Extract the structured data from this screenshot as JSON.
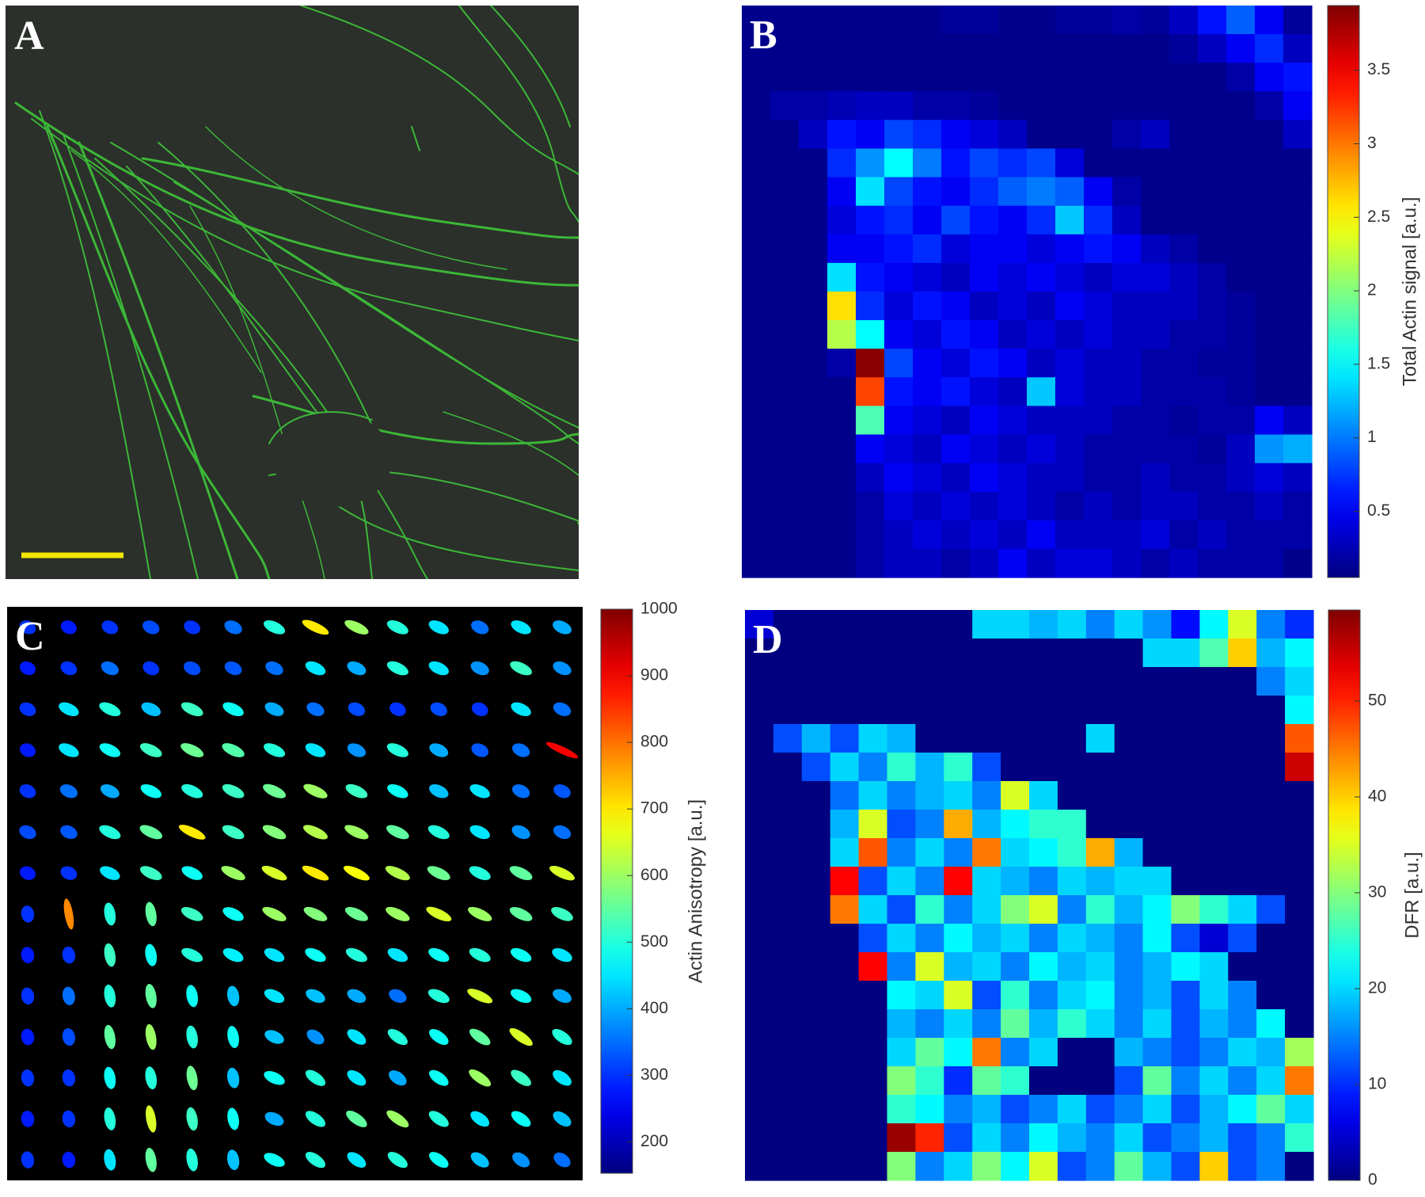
{
  "image_panel": {
    "label": "A"
  },
  "chart_data": [
    {
      "type": "heatmap",
      "label": "B",
      "colormap": "jet",
      "colorbar_label": "Total Actin signal [a.u.]",
      "ylim": [
        0.05,
        3.94
      ],
      "yticks": [
        0.5,
        1,
        1.5,
        2,
        2.5,
        3,
        3.5
      ],
      "values": [
        [
          0.1,
          0.1,
          0.1,
          0.1,
          0.1,
          0.1,
          0.1,
          0.15,
          0.15,
          0.1,
          0.1,
          0.15,
          0.15,
          0.2,
          0.15,
          0.3,
          0.6,
          0.9,
          0.5,
          0.15
        ],
        [
          0.1,
          0.1,
          0.1,
          0.1,
          0.1,
          0.1,
          0.1,
          0.1,
          0.1,
          0.1,
          0.1,
          0.1,
          0.1,
          0.1,
          0.1,
          0.15,
          0.3,
          0.5,
          0.7,
          0.3
        ],
        [
          0.1,
          0.1,
          0.1,
          0.1,
          0.1,
          0.1,
          0.1,
          0.1,
          0.1,
          0.1,
          0.1,
          0.1,
          0.1,
          0.1,
          0.1,
          0.1,
          0.1,
          0.2,
          0.5,
          0.6
        ],
        [
          0.1,
          0.2,
          0.2,
          0.25,
          0.3,
          0.3,
          0.2,
          0.2,
          0.15,
          0.1,
          0.1,
          0.1,
          0.1,
          0.1,
          0.1,
          0.1,
          0.1,
          0.1,
          0.2,
          0.5
        ],
        [
          0.1,
          0.1,
          0.3,
          0.6,
          0.5,
          0.8,
          0.7,
          0.5,
          0.4,
          0.3,
          0.1,
          0.1,
          0.1,
          0.2,
          0.3,
          0.1,
          0.1,
          0.1,
          0.1,
          0.3
        ],
        [
          0.1,
          0.1,
          0.1,
          0.7,
          1.1,
          1.5,
          1.0,
          0.6,
          0.8,
          0.7,
          0.8,
          0.4,
          0.1,
          0.1,
          0.1,
          0.1,
          0.1,
          0.1,
          0.1,
          0.1
        ],
        [
          0.1,
          0.1,
          0.1,
          0.5,
          1.4,
          0.8,
          0.6,
          0.5,
          0.7,
          0.9,
          1.0,
          0.9,
          0.5,
          0.2,
          0.1,
          0.1,
          0.1,
          0.1,
          0.1,
          0.1
        ],
        [
          0.1,
          0.1,
          0.1,
          0.4,
          0.6,
          0.7,
          0.5,
          0.8,
          0.6,
          0.5,
          0.7,
          1.3,
          0.7,
          0.3,
          0.1,
          0.1,
          0.1,
          0.1,
          0.1,
          0.1
        ],
        [
          0.1,
          0.1,
          0.1,
          0.5,
          0.5,
          0.6,
          0.7,
          0.4,
          0.5,
          0.5,
          0.4,
          0.5,
          0.6,
          0.5,
          0.3,
          0.2,
          0.1,
          0.1,
          0.1,
          0.1
        ],
        [
          0.1,
          0.1,
          0.1,
          1.4,
          0.6,
          0.5,
          0.4,
          0.3,
          0.5,
          0.4,
          0.5,
          0.4,
          0.3,
          0.4,
          0.4,
          0.3,
          0.2,
          0.1,
          0.1,
          0.1
        ],
        [
          0.1,
          0.1,
          0.1,
          2.6,
          0.7,
          0.4,
          0.6,
          0.5,
          0.3,
          0.4,
          0.3,
          0.5,
          0.4,
          0.3,
          0.3,
          0.3,
          0.2,
          0.15,
          0.1,
          0.1
        ],
        [
          0.1,
          0.1,
          0.1,
          2.2,
          1.5,
          0.5,
          0.4,
          0.6,
          0.5,
          0.3,
          0.4,
          0.3,
          0.4,
          0.3,
          0.3,
          0.2,
          0.2,
          0.15,
          0.1,
          0.1
        ],
        [
          0.1,
          0.1,
          0.1,
          0.2,
          3.9,
          0.8,
          0.5,
          0.4,
          0.6,
          0.5,
          0.3,
          0.4,
          0.3,
          0.3,
          0.2,
          0.2,
          0.15,
          0.15,
          0.1,
          0.1
        ],
        [
          0.1,
          0.1,
          0.1,
          0.1,
          3.2,
          0.6,
          0.5,
          0.6,
          0.4,
          0.3,
          1.3,
          0.4,
          0.3,
          0.3,
          0.2,
          0.2,
          0.2,
          0.15,
          0.1,
          0.1
        ],
        [
          0.1,
          0.1,
          0.1,
          0.1,
          1.8,
          0.5,
          0.4,
          0.3,
          0.5,
          0.4,
          0.3,
          0.3,
          0.3,
          0.2,
          0.2,
          0.15,
          0.2,
          0.2,
          0.5,
          0.3
        ],
        [
          0.1,
          0.1,
          0.1,
          0.1,
          0.5,
          0.4,
          0.3,
          0.5,
          0.4,
          0.3,
          0.4,
          0.3,
          0.2,
          0.2,
          0.2,
          0.2,
          0.15,
          0.3,
          1.1,
          1.2
        ],
        [
          0.1,
          0.1,
          0.1,
          0.1,
          0.3,
          0.5,
          0.4,
          0.3,
          0.5,
          0.4,
          0.3,
          0.3,
          0.2,
          0.2,
          0.3,
          0.2,
          0.2,
          0.3,
          0.4,
          0.3
        ],
        [
          0.1,
          0.1,
          0.1,
          0.1,
          0.2,
          0.4,
          0.3,
          0.4,
          0.3,
          0.4,
          0.3,
          0.2,
          0.3,
          0.2,
          0.3,
          0.3,
          0.2,
          0.2,
          0.3,
          0.2
        ],
        [
          0.1,
          0.1,
          0.1,
          0.1,
          0.2,
          0.3,
          0.4,
          0.3,
          0.4,
          0.3,
          0.5,
          0.3,
          0.3,
          0.3,
          0.4,
          0.2,
          0.3,
          0.2,
          0.2,
          0.2
        ],
        [
          0.1,
          0.1,
          0.1,
          0.1,
          0.2,
          0.3,
          0.3,
          0.2,
          0.3,
          0.5,
          0.3,
          0.4,
          0.4,
          0.3,
          0.2,
          0.3,
          0.2,
          0.2,
          0.2,
          0.1
        ]
      ]
    },
    {
      "type": "glyph_field",
      "label": "C",
      "colormap": "jet",
      "colorbar_label": "Actin Anisotropy [a.u.]",
      "ylim": [
        153,
        1000
      ],
      "yticks": [
        200,
        300,
        400,
        500,
        600,
        700,
        800,
        900,
        1000
      ],
      "values": [
        [
          300,
          280,
          300,
          320,
          300,
          350,
          500,
          700,
          600,
          500,
          450,
          350,
          450,
          400
        ],
        [
          280,
          300,
          350,
          300,
          320,
          330,
          350,
          450,
          400,
          500,
          450,
          380,
          520,
          380
        ],
        [
          300,
          450,
          500,
          420,
          520,
          480,
          400,
          350,
          320,
          300,
          320,
          300,
          450,
          350
        ],
        [
          280,
          450,
          480,
          520,
          560,
          540,
          500,
          450,
          380,
          500,
          400,
          330,
          350,
          900
        ],
        [
          300,
          350,
          400,
          480,
          500,
          520,
          560,
          600,
          520,
          480,
          420,
          450,
          350,
          330
        ],
        [
          320,
          330,
          500,
          550,
          700,
          520,
          580,
          620,
          600,
          550,
          500,
          450,
          380,
          350
        ],
        [
          280,
          300,
          450,
          520,
          480,
          600,
          650,
          700,
          680,
          620,
          560,
          500,
          550,
          650
        ],
        [
          300,
          780,
          500,
          550,
          520,
          480,
          600,
          580,
          560,
          600,
          650,
          600,
          550,
          520
        ],
        [
          280,
          300,
          520,
          480,
          500,
          460,
          450,
          480,
          500,
          450,
          480,
          500,
          480,
          450
        ],
        [
          300,
          350,
          500,
          550,
          480,
          420,
          450,
          420,
          400,
          350,
          500,
          650,
          480,
          400
        ],
        [
          280,
          320,
          550,
          600,
          500,
          480,
          420,
          380,
          450,
          500,
          480,
          550,
          650,
          500
        ],
        [
          300,
          300,
          480,
          500,
          560,
          420,
          480,
          500,
          450,
          400,
          480,
          600,
          520,
          450
        ],
        [
          280,
          300,
          500,
          650,
          520,
          480,
          400,
          500,
          550,
          600,
          500,
          450,
          480,
          420
        ],
        [
          300,
          280,
          450,
          550,
          500,
          420,
          480,
          500,
          450,
          500,
          480,
          420,
          380,
          350
        ]
      ]
    },
    {
      "type": "heatmap",
      "label": "D",
      "colormap": "jet",
      "colorbar_label": "DFR [a.u.]",
      "ylim": [
        0,
        59.5
      ],
      "yticks": [
        0,
        10,
        20,
        30,
        40,
        50
      ],
      "values": [
        [
          5,
          0,
          0,
          0,
          0,
          0,
          0,
          0,
          20,
          20,
          18,
          20,
          15,
          20,
          16,
          8,
          22,
          35,
          15,
          10
        ],
        [
          0,
          0,
          0,
          0,
          0,
          0,
          0,
          0,
          0,
          0,
          0,
          0,
          0,
          0,
          20,
          20,
          27,
          40,
          18,
          22
        ],
        [
          0,
          0,
          0,
          0,
          0,
          0,
          0,
          0,
          0,
          0,
          0,
          0,
          0,
          0,
          0,
          0,
          0,
          0,
          15,
          20
        ],
        [
          0,
          0,
          0,
          0,
          0,
          0,
          0,
          0,
          0,
          0,
          0,
          0,
          0,
          0,
          0,
          0,
          0,
          0,
          0,
          22
        ],
        [
          0,
          12,
          18,
          12,
          20,
          18,
          0,
          0,
          0,
          0,
          0,
          0,
          20,
          0,
          0,
          0,
          0,
          0,
          0,
          47
        ],
        [
          0,
          0,
          12,
          20,
          15,
          25,
          18,
          25,
          12,
          0,
          0,
          0,
          0,
          0,
          0,
          0,
          0,
          0,
          0,
          55
        ],
        [
          0,
          0,
          0,
          14,
          20,
          15,
          18,
          20,
          15,
          35,
          20,
          0,
          0,
          0,
          0,
          0,
          0,
          0,
          0,
          0
        ],
        [
          0,
          0,
          0,
          18,
          35,
          12,
          15,
          42,
          18,
          22,
          25,
          25,
          0,
          0,
          0,
          0,
          0,
          0,
          0,
          0
        ],
        [
          0,
          0,
          0,
          20,
          47,
          15,
          20,
          15,
          45,
          20,
          22,
          25,
          42,
          18,
          0,
          0,
          0,
          0,
          0,
          0
        ],
        [
          0,
          0,
          0,
          52,
          12,
          20,
          15,
          52,
          20,
          18,
          15,
          20,
          18,
          20,
          20,
          0,
          0,
          0,
          0,
          0
        ],
        [
          0,
          0,
          0,
          45,
          20,
          12,
          25,
          15,
          20,
          30,
          35,
          15,
          25,
          18,
          22,
          30,
          25,
          20,
          12,
          0
        ],
        [
          0,
          0,
          0,
          0,
          12,
          20,
          15,
          22,
          18,
          20,
          15,
          20,
          18,
          15,
          22,
          12,
          5,
          12,
          0,
          0
        ],
        [
          0,
          0,
          0,
          0,
          52,
          15,
          35,
          18,
          20,
          15,
          22,
          18,
          20,
          15,
          18,
          22,
          20,
          0,
          0,
          0
        ],
        [
          0,
          0,
          0,
          0,
          0,
          22,
          20,
          35,
          12,
          25,
          15,
          20,
          22,
          15,
          18,
          12,
          20,
          15,
          0,
          0
        ],
        [
          0,
          0,
          0,
          0,
          0,
          18,
          15,
          20,
          15,
          28,
          18,
          25,
          20,
          15,
          20,
          12,
          18,
          15,
          22,
          0
        ],
        [
          0,
          0,
          0,
          0,
          0,
          20,
          28,
          22,
          45,
          15,
          20,
          0,
          0,
          18,
          15,
          12,
          15,
          20,
          18,
          32
        ],
        [
          0,
          0,
          0,
          0,
          0,
          30,
          25,
          10,
          28,
          25,
          0,
          0,
          0,
          12,
          28,
          15,
          20,
          15,
          20,
          45
        ],
        [
          0,
          0,
          0,
          0,
          0,
          25,
          22,
          15,
          18,
          12,
          15,
          20,
          12,
          15,
          20,
          12,
          18,
          22,
          28,
          20
        ],
        [
          0,
          0,
          0,
          0,
          0,
          58,
          50,
          12,
          20,
          15,
          22,
          18,
          15,
          20,
          12,
          15,
          18,
          12,
          15,
          25
        ],
        [
          0,
          0,
          0,
          0,
          0,
          30,
          15,
          20,
          30,
          22,
          35,
          12,
          15,
          28,
          18,
          12,
          40,
          12,
          15,
          0
        ]
      ]
    }
  ]
}
